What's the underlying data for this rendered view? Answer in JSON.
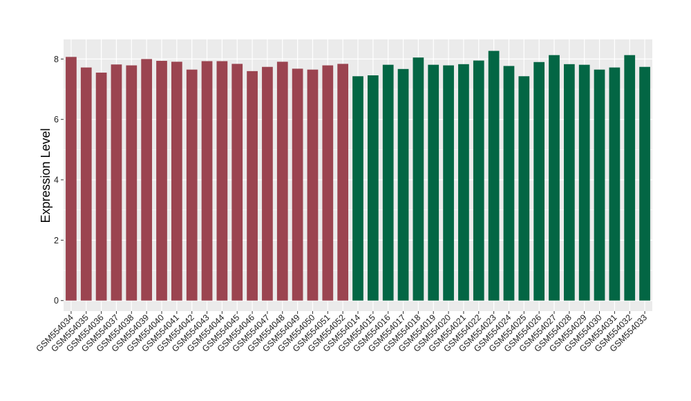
{
  "chart_data": {
    "type": "bar",
    "title": "",
    "xlabel": "",
    "ylabel": "Expression Level",
    "ylim": [
      -0.35,
      8.65
    ],
    "yticks": [
      0,
      2,
      4,
      6,
      8
    ],
    "grid": true,
    "legend": "none",
    "colors": {
      "group1": "#9b4450",
      "group2": "#036644",
      "panel": "#ebebeb",
      "grid": "#ffffff"
    },
    "categories": [
      "GSM554034",
      "GSM554035",
      "GSM554036",
      "GSM554037",
      "GSM554038",
      "GSM554039",
      "GSM554040",
      "GSM554041",
      "GSM554042",
      "GSM554043",
      "GSM554044",
      "GSM554045",
      "GSM554046",
      "GSM554047",
      "GSM554048",
      "GSM554049",
      "GSM554050",
      "GSM554051",
      "GSM554052",
      "GSM554014",
      "GSM554015",
      "GSM554016",
      "GSM554017",
      "GSM554018",
      "GSM554019",
      "GSM554020",
      "GSM554021",
      "GSM554022",
      "GSM554023",
      "GSM554024",
      "GSM554025",
      "GSM554026",
      "GSM554027",
      "GSM554028",
      "GSM554029",
      "GSM554030",
      "GSM554031",
      "GSM554032",
      "GSM554033"
    ],
    "values": [
      8.07,
      7.72,
      7.55,
      7.82,
      7.79,
      8.0,
      7.94,
      7.91,
      7.65,
      7.93,
      7.93,
      7.84,
      7.6,
      7.74,
      7.91,
      7.68,
      7.65,
      7.79,
      7.84,
      7.43,
      7.46,
      7.81,
      7.67,
      8.05,
      7.81,
      7.79,
      7.83,
      7.95,
      8.27,
      7.77,
      7.43,
      7.9,
      8.13,
      7.83,
      7.81,
      7.65,
      7.72,
      8.13,
      7.74
    ],
    "groups": [
      "group1",
      "group1",
      "group1",
      "group1",
      "group1",
      "group1",
      "group1",
      "group1",
      "group1",
      "group1",
      "group1",
      "group1",
      "group1",
      "group1",
      "group1",
      "group1",
      "group1",
      "group1",
      "group1",
      "group2",
      "group2",
      "group2",
      "group2",
      "group2",
      "group2",
      "group2",
      "group2",
      "group2",
      "group2",
      "group2",
      "group2",
      "group2",
      "group2",
      "group2",
      "group2",
      "group2",
      "group2",
      "group2",
      "group2"
    ]
  }
}
